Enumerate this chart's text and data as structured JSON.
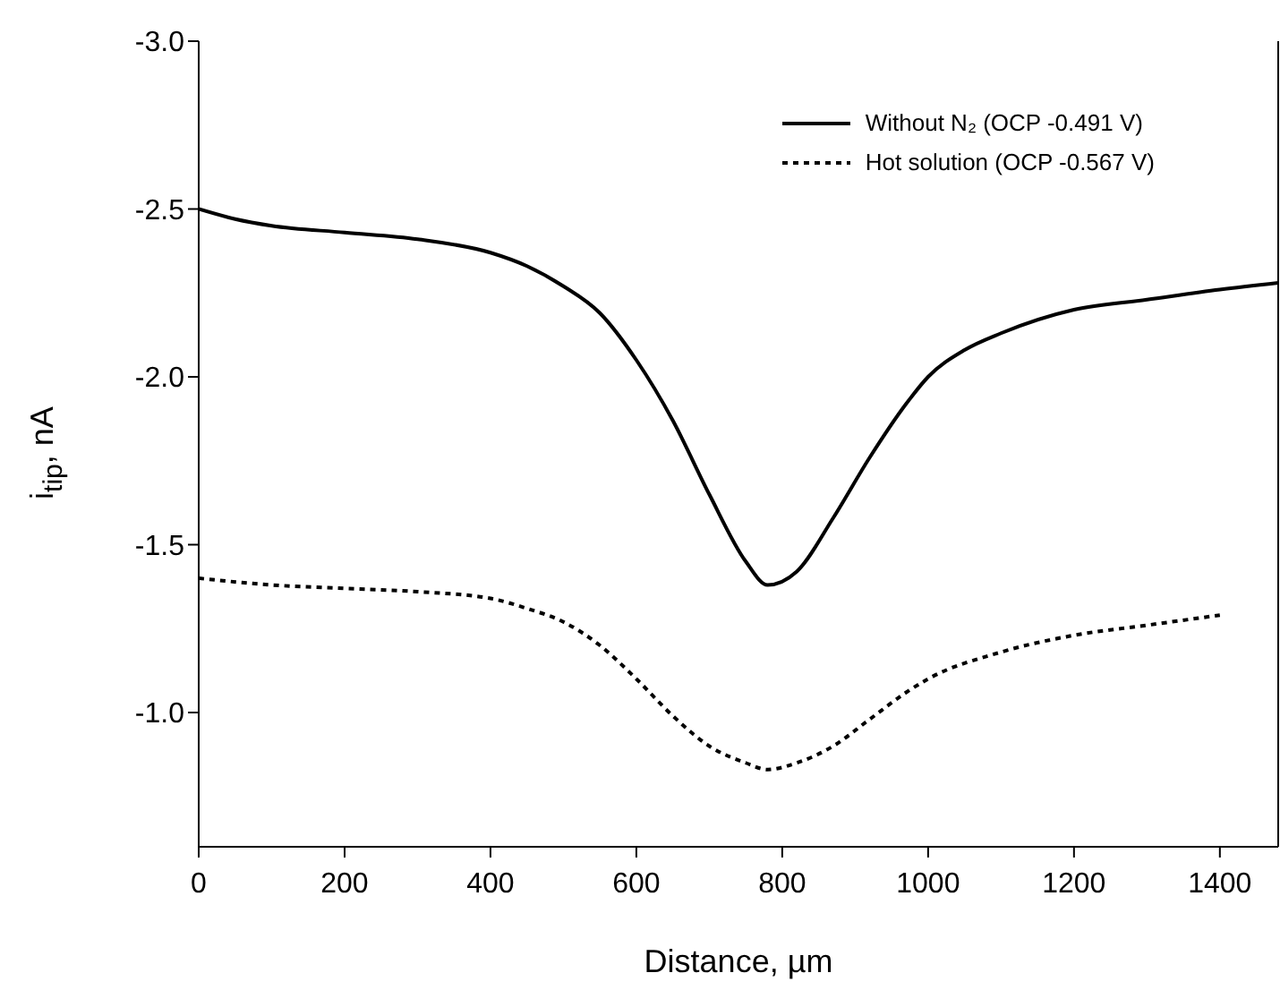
{
  "chart_data": {
    "type": "line",
    "xlabel": "Distance, µm",
    "ylabel": "i$_{tip}$, nA",
    "xlim": [
      0,
      1480
    ],
    "xticks": [
      0,
      200,
      400,
      600,
      800,
      1000,
      1200,
      1400
    ],
    "ylim": [
      -0.6,
      -3.0
    ],
    "yticks": [
      {
        "value": -3,
        "label": "-3.0"
      },
      -2.5,
      {
        "value": -2,
        "label": "-2.0"
      },
      -1.5,
      {
        "value": -1,
        "label": "-1.0"
      }
    ],
    "grid": false,
    "legend": "top right",
    "marker": "none",
    "series": [
      {
        "name": "Without N₂ (OCP -0.491 V)",
        "color": "#000000",
        "line_style": "solid",
        "x": [
          0,
          50,
          100,
          200,
          300,
          400,
          450,
          500,
          550,
          600,
          650,
          700,
          750,
          780,
          820,
          870,
          920,
          970,
          1000,
          1050,
          1100,
          1200,
          1300,
          1400,
          1480
        ],
        "values": [
          -2.5,
          -2.47,
          -2.45,
          -2.43,
          -2.41,
          -2.37,
          -2.33,
          -2.27,
          -2.19,
          -2.05,
          -1.87,
          -1.65,
          -1.45,
          -1.38,
          -1.42,
          -1.58,
          -1.76,
          -1.92,
          -2.0,
          -2.08,
          -2.13,
          -2.2,
          -2.23,
          -2.26,
          -2.28
        ]
      },
      {
        "name": "Hot solution (OCP -0.567 V)",
        "color": "#000000",
        "line_style": "dotted",
        "x": [
          0,
          100,
          200,
          300,
          400,
          450,
          500,
          550,
          600,
          650,
          700,
          750,
          780,
          820,
          870,
          920,
          970,
          1000,
          1100,
          1200,
          1300,
          1400
        ],
        "values": [
          -1.4,
          -1.38,
          -1.37,
          -1.36,
          -1.34,
          -1.31,
          -1.27,
          -1.2,
          -1.1,
          -0.99,
          -0.9,
          -0.85,
          -0.83,
          -0.85,
          -0.9,
          -0.98,
          -1.06,
          -1.1,
          -1.18,
          -1.23,
          -1.26,
          -1.29
        ]
      }
    ]
  }
}
